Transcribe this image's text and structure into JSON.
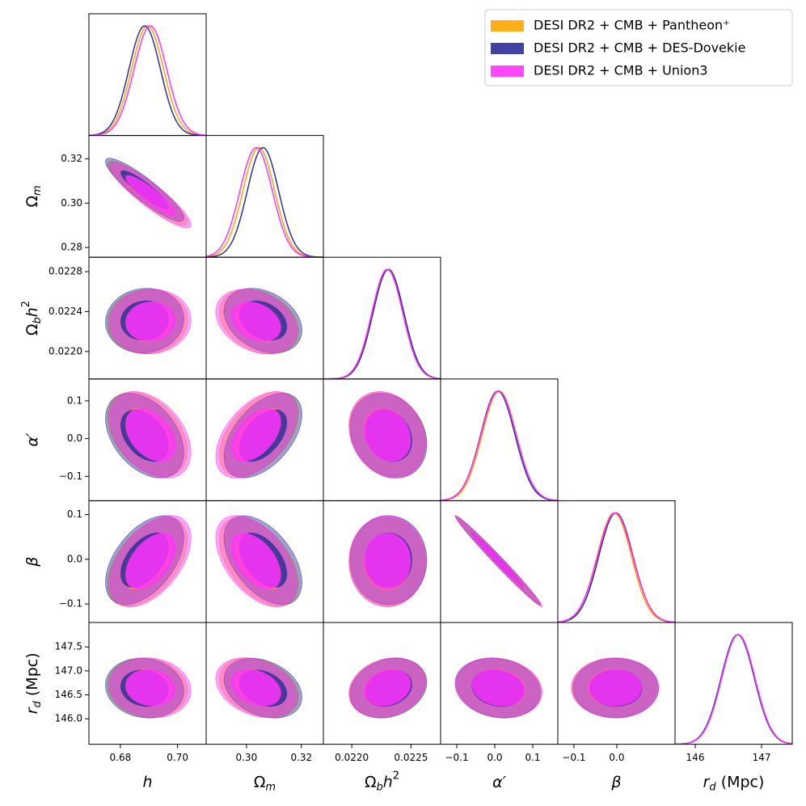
{
  "chart_data": {
    "type": "corner",
    "legend": "upper right",
    "series": [
      {
        "name": "DESI DR2 + CMB + Pantheon⁺",
        "color": "#ffa500",
        "mean": [
          0.6895,
          0.3045,
          0.0223,
          0.012,
          -0.006,
          146.65
        ],
        "sigma": [
          0.0056,
          0.0058,
          0.00013,
          0.045,
          0.04,
          0.25
        ]
      },
      {
        "name": "DESI DR2 + CMB + DES-Dovekie",
        "color": "#2e2e9a",
        "mean": [
          0.6885,
          0.306,
          0.02231,
          0.008,
          -0.002,
          146.64
        ],
        "sigma": [
          0.0055,
          0.0057,
          0.00013,
          0.045,
          0.04,
          0.25
        ]
      },
      {
        "name": "DESI DR2 + CMB + Union3",
        "color": "#ff33ff",
        "mean": [
          0.6905,
          0.3035,
          0.0223,
          0.01,
          -0.004,
          146.65
        ],
        "sigma": [
          0.0057,
          0.0059,
          0.00013,
          0.046,
          0.041,
          0.25
        ]
      }
    ],
    "correlation": [
      [],
      [
        -0.9
      ],
      [
        0.05,
        -0.3
      ],
      [
        -0.4,
        0.5,
        -0.2
      ],
      [
        0.5,
        -0.5,
        0.0,
        -0.99
      ],
      [
        -0.1,
        -0.3,
        0.2,
        -0.15,
        0.0
      ]
    ],
    "parameters": [
      {
        "label": [
          {
            "text": "h",
            "italic": true
          }
        ],
        "xlim": [
          0.669,
          0.71
        ],
        "xticks": [
          0.68,
          {
            "value": 0.7,
            "label": "0.70"
          }
        ]
      },
      {
        "label": [
          {
            "text": "Ω"
          },
          {
            "text": "m",
            "sub": true,
            "italic": true
          }
        ],
        "xlim": [
          0.2853,
          0.328
        ],
        "xticks": [
          {
            "value": 0.3,
            "label": "0.30"
          },
          0.32
        ],
        "ylim": [
          0.2756,
          0.3305
        ],
        "yticks": [
          0.28,
          {
            "value": 0.3,
            "label": "0.30"
          },
          0.32
        ]
      },
      {
        "label": [
          {
            "text": "Ω"
          },
          {
            "text": "b",
            "sub": true,
            "italic": true
          },
          {
            "text": "h",
            "italic": true
          },
          {
            "text": "2",
            "sup": true
          }
        ],
        "xlim": [
          0.02176,
          0.02275
        ],
        "xticks": [
          {
            "value": 0.022,
            "label": "0.0220"
          },
          0.0225
        ],
        "ylim": [
          0.021725,
          0.022945
        ],
        "yticks": [
          {
            "value": 0.022,
            "label": "0.0220"
          },
          0.0224,
          0.0228
        ]
      },
      {
        "label": [
          {
            "text": "α′",
            "italic": true
          }
        ],
        "xlim": [
          -0.1426,
          0.166
        ],
        "xticks": [
          {
            "value": -0.1,
            "label": "−0.1"
          },
          {
            "value": 0,
            "label": "0.0"
          },
          0.1
        ],
        "ylim": [
          -0.1645,
          0.158
        ],
        "yticks": [
          {
            "value": -0.1,
            "label": "−0.1"
          },
          {
            "value": 0,
            "label": "0.0"
          },
          0.1
        ]
      },
      {
        "label": [
          {
            "text": "β",
            "italic": true
          }
        ],
        "xlim": [
          -0.1377,
          0.136
        ],
        "xticks": [
          {
            "value": -0.1,
            "label": "−0.1"
          },
          {
            "value": 0,
            "label": "0.0"
          }
        ],
        "ylim": [
          -0.1414,
          0.131
        ],
        "yticks": [
          {
            "value": -0.1,
            "label": "−0.1"
          },
          {
            "value": 0,
            "label": "0.0"
          },
          0.1
        ]
      },
      {
        "label": [
          {
            "text": "r",
            "italic": true
          },
          {
            "text": "d",
            "sub": true,
            "italic": true
          },
          {
            "text": " (Mpc)"
          }
        ],
        "xlim": [
          145.695,
          147.463
        ],
        "xticks": [
          146,
          147
        ],
        "ylim": [
          145.47,
          148.01
        ],
        "yticks": [
          {
            "value": 146,
            "label": "146.0"
          },
          146.5,
          {
            "value": 147,
            "label": "147.0"
          },
          147.5
        ]
      }
    ]
  }
}
